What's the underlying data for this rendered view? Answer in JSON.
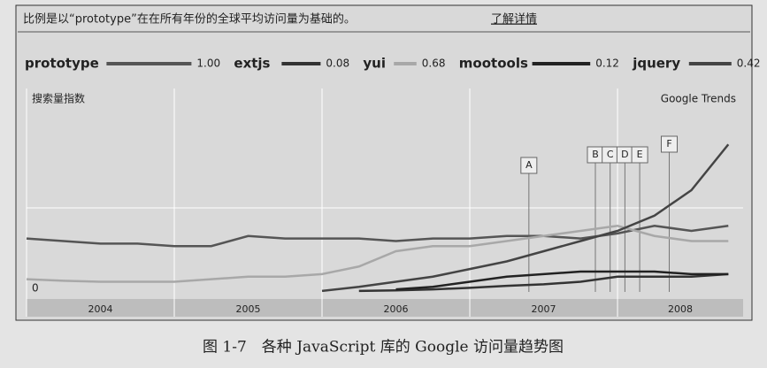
{
  "chart_data": {
    "type": "line",
    "title": "比例是以“prototype”在在所有年份的全球平均访问量为基础的。",
    "link": "了解详情",
    "ylabel": "搜索量指数",
    "watermark": "Google Trends",
    "caption": "图 1-7　各种 JavaScript 库的 Google 访问量趋势图",
    "x": [
      2004,
      2004.25,
      2004.5,
      2004.75,
      2005,
      2005.25,
      2005.5,
      2005.75,
      2006,
      2006.25,
      2006.5,
      2006.75,
      2007,
      2007.25,
      2007.5,
      2007.75,
      2008,
      2008.25,
      2008.5,
      2008.75
    ],
    "xlim": [
      2004,
      2008.85
    ],
    "xticks": [
      2004,
      2005,
      2006,
      2007,
      2008
    ],
    "ylim": [
      0,
      4
    ],
    "yticks": [
      0
    ],
    "grid": true,
    "series": [
      {
        "name": "prototype",
        "color": "#555555",
        "average": 1,
        "average_label": "1.00",
        "values": [
          1.05,
          1.0,
          0.95,
          0.95,
          0.9,
          0.9,
          1.1,
          1.05,
          1.05,
          1.05,
          1.0,
          1.05,
          1.05,
          1.1,
          1.1,
          1.05,
          1.15,
          1.3,
          1.2,
          1.3
        ]
      },
      {
        "name": "extjs",
        "color": "#333333",
        "average": 0.08,
        "average_label": "0.08",
        "values": [
          null,
          null,
          null,
          null,
          null,
          null,
          null,
          null,
          null,
          0.02,
          0.03,
          0.05,
          0.08,
          0.12,
          0.15,
          0.2,
          0.3,
          0.3,
          0.3,
          0.35
        ]
      },
      {
        "name": "yui",
        "color": "#a8a8a8",
        "average": 0.68,
        "average_label": "0.68",
        "values": [
          0.25,
          0.22,
          0.2,
          0.2,
          0.2,
          0.25,
          0.3,
          0.3,
          0.35,
          0.5,
          0.8,
          0.9,
          0.9,
          1.0,
          1.1,
          1.2,
          1.3,
          1.1,
          1.0,
          1.0
        ]
      },
      {
        "name": "mootools",
        "color": "#222222",
        "average": 0.12,
        "average_label": "0.12",
        "values": [
          null,
          null,
          null,
          null,
          null,
          null,
          null,
          null,
          null,
          null,
          0.05,
          0.1,
          0.2,
          0.3,
          0.35,
          0.4,
          0.4,
          0.4,
          0.35,
          0.35
        ]
      },
      {
        "name": "jquery",
        "color": "#444444",
        "average": 0.42,
        "average_label": "0.42",
        "values": [
          null,
          null,
          null,
          null,
          null,
          null,
          null,
          null,
          0.02,
          0.1,
          0.2,
          0.3,
          0.45,
          0.6,
          0.8,
          1.0,
          1.2,
          1.5,
          2.0,
          2.9
        ]
      }
    ],
    "annotations": [
      {
        "label": "A",
        "x": 2007.4
      },
      {
        "label": "B",
        "x": 2007.85
      },
      {
        "label": "C",
        "x": 2007.95
      },
      {
        "label": "D",
        "x": 2008.05
      },
      {
        "label": "E",
        "x": 2008.15
      },
      {
        "label": "F",
        "x": 2008.35
      }
    ]
  }
}
